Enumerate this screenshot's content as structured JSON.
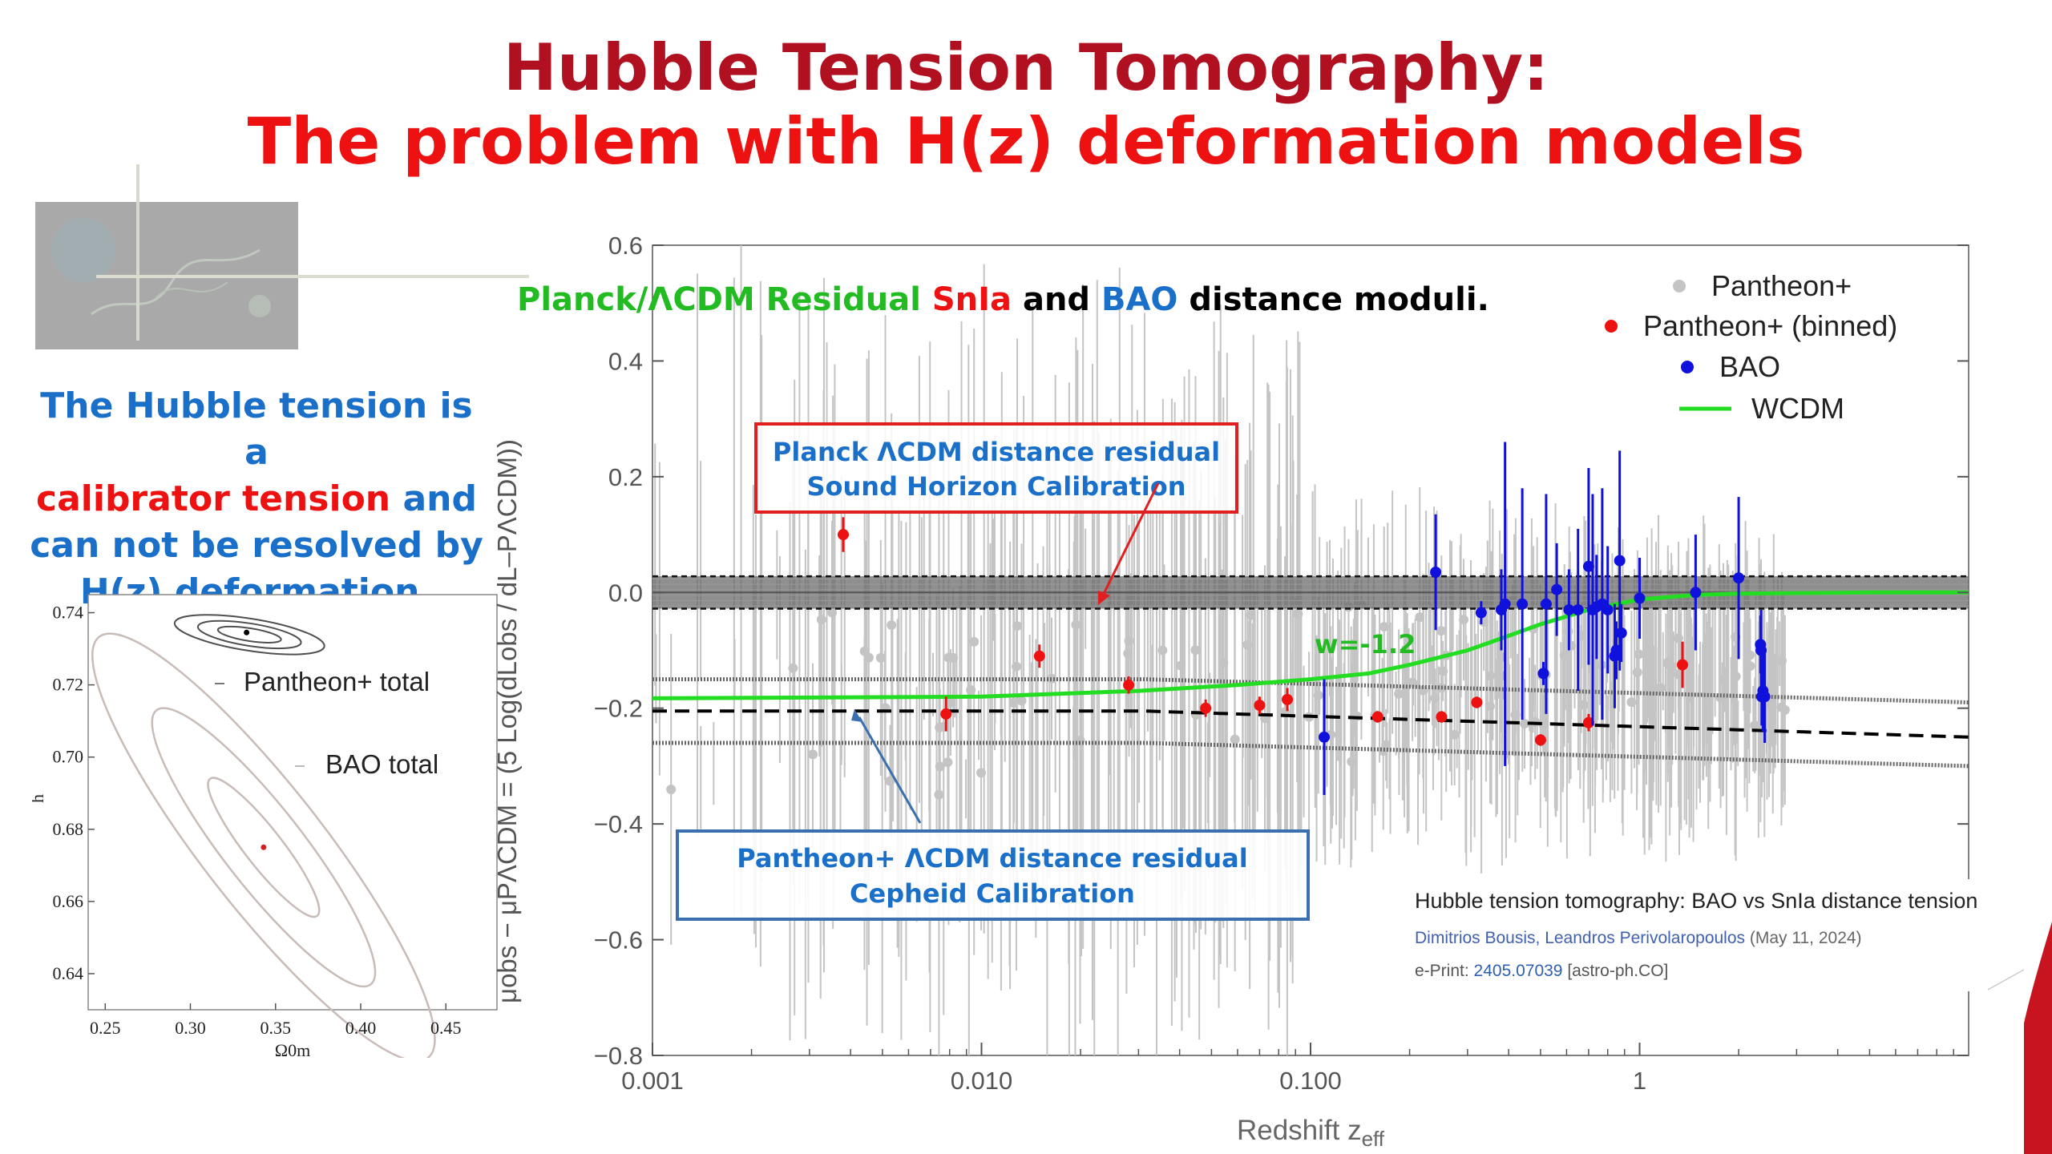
{
  "slide": {
    "title_line1": "Hubble Tension Tomography:",
    "title_line2": "The problem with H(z) deformation models",
    "side_text": {
      "line1": "The Hubble tension is a",
      "line2_red": "calibrator tension",
      "line2_rest": " and",
      "line3": "can not be resolved by",
      "line4": "H(z) deformation."
    },
    "colors": {
      "title_dark": "#b01020",
      "title_red": "#ee1111",
      "side_blue": "#1a6fc9"
    },
    "reference": {
      "title": "Hubble tension tomography: BAO vs SnIa distance tension",
      "authors": "Dimitrios Bousis, Leandros Perivolaropoulos",
      "date": " (May 11, 2024)",
      "eprint_label": "e-Print: ",
      "eprint_id": "2405.07039",
      "eprint_cat": " [astro-ph.CO]"
    }
  },
  "chart_data": [
    {
      "type": "scatter",
      "title": "",
      "xlabel": "Ω0m",
      "ylabel": "h",
      "xlim": [
        0.24,
        0.48
      ],
      "ylim": [
        0.63,
        0.745
      ],
      "xticks": [
        "0.25",
        "0.30",
        "0.35",
        "0.40",
        "0.45"
      ],
      "yticks": [
        "0.64",
        "0.66",
        "0.68",
        "0.70",
        "0.72",
        "0.74"
      ],
      "legend": [
        "Pantheon+ total",
        "BAO total"
      ],
      "series": [
        {
          "name": "Pantheon+ total",
          "best_fit": {
            "x": 0.333,
            "y": 0.7345
          },
          "color": "#000000",
          "contour_color": "#505050"
        },
        {
          "name": "BAO total",
          "best_fit": {
            "x": 0.343,
            "y": 0.675
          },
          "color": "#cc2222",
          "contour_color": "#c8bcb8"
        }
      ]
    },
    {
      "type": "scatter",
      "title": "",
      "annotation_title": {
        "part1": "Planck/ΛCDM Residual ",
        "part2": "SnIa",
        "part3": " and ",
        "part4": "BAO",
        "part5": " distance moduli."
      },
      "xlabel": "Redshift z",
      "xlabel_sub": "eff",
      "ylabel": "μobs − μPΛCDM = (5 Log(dLobs / dL–PΛCDM))",
      "x_scale": "log",
      "xlim": [
        0.001,
        10
      ],
      "ylim": [
        -0.8,
        0.6
      ],
      "xticks": [
        "0.001",
        "0.010",
        "0.100",
        "1"
      ],
      "yticks": [
        "0.6",
        "0.4",
        "0.2",
        "0.0",
        "−0.2",
        "−0.4",
        "−0.6",
        "−0.8"
      ],
      "legend_placement": "top-right",
      "legend": [
        "Pantheon+",
        "Pantheon+ (binned)",
        "BAO",
        "WCDM"
      ],
      "colors": {
        "pantheon": "#c4c4c4",
        "binned": "#ee1111",
        "bao": "#1111dd",
        "wcdm": "#22dd22"
      },
      "pantheon_binned": [
        {
          "x": 0.0038,
          "y": 0.1,
          "err": 0.03
        },
        {
          "x": 0.0078,
          "y": -0.21,
          "err": 0.03
        },
        {
          "x": 0.015,
          "y": -0.11,
          "err": 0.02
        },
        {
          "x": 0.028,
          "y": -0.16,
          "err": 0.015
        },
        {
          "x": 0.048,
          "y": -0.2,
          "err": 0.015
        },
        {
          "x": 0.07,
          "y": -0.195,
          "err": 0.015
        },
        {
          "x": 0.085,
          "y": -0.185,
          "err": 0.02
        },
        {
          "x": 0.16,
          "y": -0.215,
          "err": 0.01
        },
        {
          "x": 0.25,
          "y": -0.215,
          "err": 0.01
        },
        {
          "x": 0.32,
          "y": -0.19,
          "err": 0.01
        },
        {
          "x": 0.5,
          "y": -0.255,
          "err": 0.01
        },
        {
          "x": 0.7,
          "y": -0.225,
          "err": 0.015
        },
        {
          "x": 1.35,
          "y": -0.125,
          "err": 0.04
        }
      ],
      "bao": [
        {
          "x": 0.11,
          "y": -0.25,
          "err": 0.1
        },
        {
          "x": 0.24,
          "y": 0.035,
          "err": 0.1
        },
        {
          "x": 0.33,
          "y": -0.035,
          "err": 0.02
        },
        {
          "x": 0.38,
          "y": -0.03,
          "err": 0.07
        },
        {
          "x": 0.39,
          "y": -0.02,
          "err": 0.28
        },
        {
          "x": 0.44,
          "y": -0.02,
          "err": 0.2
        },
        {
          "x": 0.51,
          "y": -0.14,
          "err": 0.02
        },
        {
          "x": 0.52,
          "y": -0.02,
          "err": 0.19
        },
        {
          "x": 0.56,
          "y": 0.005,
          "err": 0.08
        },
        {
          "x": 0.61,
          "y": -0.03,
          "err": 0.07
        },
        {
          "x": 0.65,
          "y": -0.03,
          "err": 0.14
        },
        {
          "x": 0.7,
          "y": 0.045,
          "err": 0.17
        },
        {
          "x": 0.72,
          "y": -0.03,
          "err": 0.2
        },
        {
          "x": 0.74,
          "y": -0.025,
          "err": 0.09
        },
        {
          "x": 0.77,
          "y": -0.02,
          "err": 0.2
        },
        {
          "x": 0.8,
          "y": -0.03,
          "err": 0.11
        },
        {
          "x": 0.84,
          "y": -0.11,
          "err": 0.09
        },
        {
          "x": 0.85,
          "y": -0.1,
          "err": 0.05
        },
        {
          "x": 0.87,
          "y": 0.055,
          "err": 0.19
        },
        {
          "x": 0.88,
          "y": -0.07,
          "err": 0.05
        },
        {
          "x": 1.0,
          "y": -0.01,
          "err": 0.07
        },
        {
          "x": 1.48,
          "y": 0.0,
          "err": 0.1
        },
        {
          "x": 2.0,
          "y": 0.025,
          "err": 0.14
        },
        {
          "x": 2.33,
          "y": -0.09,
          "err": 0.05
        },
        {
          "x": 2.34,
          "y": -0.1,
          "err": 0.07
        },
        {
          "x": 2.35,
          "y": -0.18,
          "err": 0.05
        },
        {
          "x": 2.37,
          "y": -0.17,
          "err": 0.07
        },
        {
          "x": 2.4,
          "y": -0.18,
          "err": 0.08
        }
      ],
      "wcdm_curve": {
        "label": "w=-1.2",
        "points": [
          [
            0.001,
            -0.183
          ],
          [
            0.01,
            -0.18
          ],
          [
            0.03,
            -0.17
          ],
          [
            0.06,
            -0.16
          ],
          [
            0.1,
            -0.15
          ],
          [
            0.15,
            -0.14
          ],
          [
            0.2,
            -0.125
          ],
          [
            0.3,
            -0.1
          ],
          [
            0.4,
            -0.075
          ],
          [
            0.5,
            -0.055
          ],
          [
            0.7,
            -0.03
          ],
          [
            1.0,
            -0.012
          ],
          [
            1.5,
            -0.004
          ],
          [
            2,
            -0.002
          ],
          [
            5,
            0.0
          ],
          [
            10,
            0.0
          ]
        ]
      },
      "reference_lines": {
        "planck_band": [
          -0.028,
          0.028
        ],
        "planck_center": 0.0,
        "pantheon_center_start": -0.205,
        "pantheon_center_end": -0.25,
        "pantheon_band_upper_start": -0.15,
        "pantheon_band_upper_end": -0.19,
        "pantheon_band_lower_start": -0.26,
        "pantheon_band_lower_end": -0.3
      },
      "box_planck": {
        "line1": "Planck ΛCDM distance residual",
        "line2": "Sound Horizon Calibration",
        "color": "#e02020"
      },
      "box_pantheon": {
        "line1": "Pantheon+ ΛCDM distance residual",
        "line2": "Cepheid Calibration",
        "color": "#3a6fb0"
      }
    }
  ]
}
